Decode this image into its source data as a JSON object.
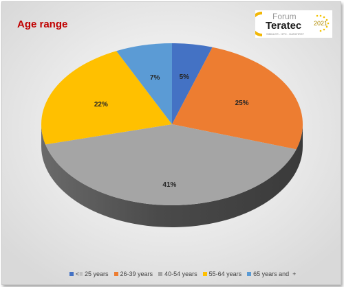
{
  "chart_data": {
    "type": "pie",
    "title": "Age range",
    "categories": [
      "<= 25 years",
      "26-39 years",
      "40-54 years",
      "55-64 years",
      "65 years and  +"
    ],
    "values": [
      5,
      25,
      41,
      22,
      7
    ],
    "value_labels": [
      "5%",
      "25%",
      "41%",
      "22%",
      "7%"
    ],
    "colors": [
      "#4472c4",
      "#ed7d31",
      "#a5a5a5",
      "#ffc000",
      "#5b9bd5"
    ],
    "style": "3d",
    "legend_position": "bottom"
  },
  "logo": {
    "line1": "Forum",
    "line2": "Teratec",
    "year": "2021",
    "tagline": "SIMULER - HPC - DATAFIRST"
  }
}
